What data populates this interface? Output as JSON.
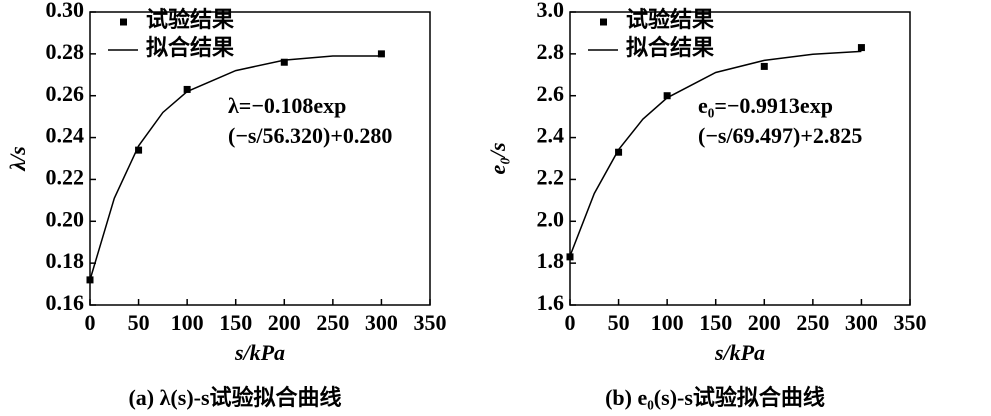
{
  "chart_data": [
    {
      "type": "scatter-line",
      "ylabel": "λ/s",
      "xlabel": "s/kPa",
      "caption": "(a) λ(s)-s试验拟合曲线",
      "annotation": [
        "λ=−0.108exp",
        "(−s/56.320)+0.280"
      ],
      "xlim": [
        0,
        350
      ],
      "xticks": [
        0,
        50,
        100,
        150,
        200,
        250,
        300,
        350
      ],
      "ylim": [
        0.16,
        0.3
      ],
      "yticks": [
        0.16,
        0.18,
        {
          "value": 0.2,
          "label": "0.20"
        },
        0.22,
        0.24,
        0.26,
        0.28,
        {
          "value": 0.3,
          "label": "0.30"
        }
      ],
      "legend": "upper left",
      "series": [
        {
          "name": "试验结果",
          "kind": "scatter",
          "color": "#000000",
          "x": [
            0,
            50,
            100,
            200,
            300
          ],
          "values": [
            0.172,
            0.234,
            0.263,
            0.276,
            0.28
          ]
        },
        {
          "name": "拟合结果",
          "kind": "line",
          "color": "#000000",
          "x": [
            0,
            25,
            50,
            75,
            100,
            150,
            200,
            250,
            300
          ],
          "values": [
            0.172,
            0.211,
            0.236,
            0.252,
            0.262,
            0.272,
            0.277,
            0.279,
            0.279
          ]
        }
      ]
    },
    {
      "type": "scatter-line",
      "ylabel": "e₀/s",
      "xlabel": "s/kPa",
      "caption": "(b) e₀(s)-s试验拟合曲线",
      "annotation": [
        "e₀=−0.9913exp",
        "(−s/69.497)+2.825"
      ],
      "xlim": [
        0,
        350
      ],
      "xticks": [
        0,
        50,
        100,
        150,
        200,
        250,
        300,
        350
      ],
      "ylim": [
        1.6,
        3.0
      ],
      "yticks": [
        1.6,
        1.8,
        {
          "value": 2,
          "label": "2.0"
        },
        2.2,
        2.4,
        2.6,
        2.8,
        {
          "value": 3,
          "label": "3.0"
        }
      ],
      "legend": "upper left",
      "series": [
        {
          "name": "试验结果",
          "kind": "scatter",
          "color": "#000000",
          "x": [
            0,
            50,
            100,
            200,
            300
          ],
          "values": [
            1.83,
            2.33,
            2.6,
            2.74,
            2.83
          ]
        },
        {
          "name": "拟合结果",
          "kind": "line",
          "color": "#000000",
          "x": [
            0,
            25,
            50,
            75,
            100,
            150,
            200,
            250,
            300
          ],
          "values": [
            1.834,
            2.133,
            2.342,
            2.488,
            2.59,
            2.711,
            2.769,
            2.798,
            2.812
          ]
        }
      ]
    }
  ]
}
